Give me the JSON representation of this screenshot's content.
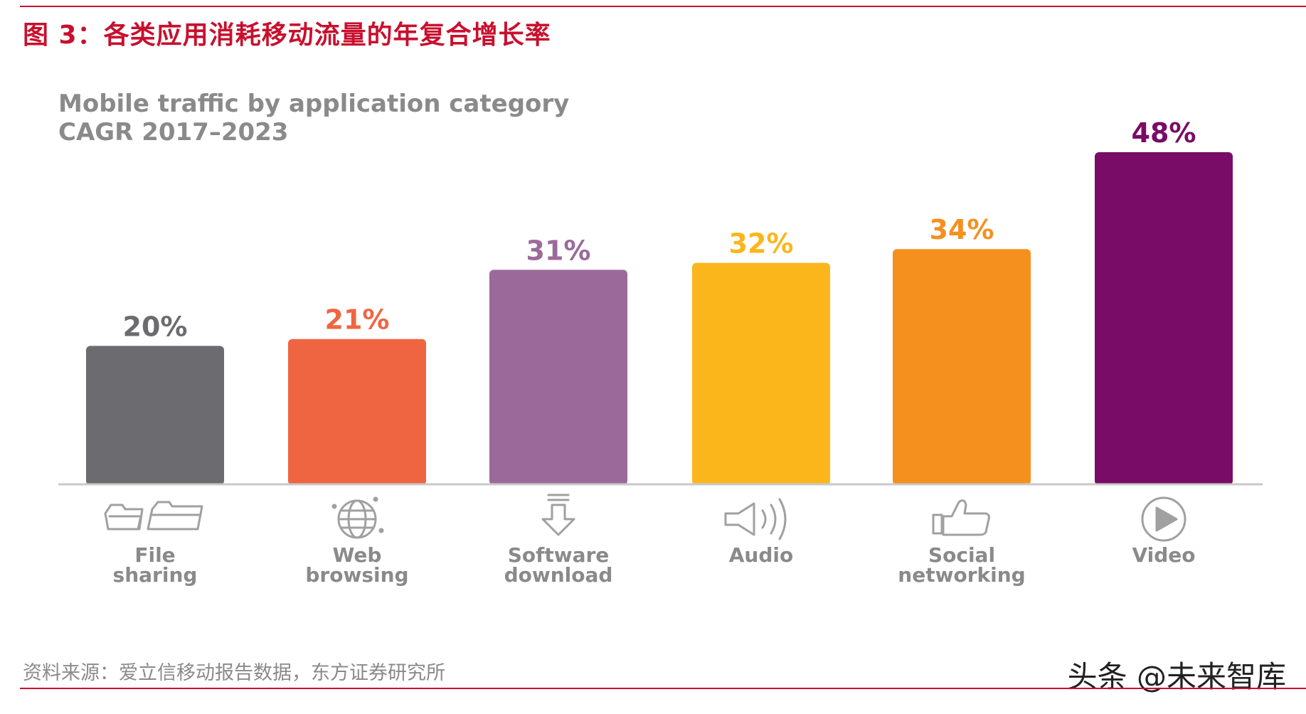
{
  "figure_title": "图 3：各类应用消耗移动流量的年复合增长率",
  "source_note": "资料来源：爱立信移动报告数据，东方证券研究所",
  "watermark": "头条 @未来智库",
  "chart_data": {
    "type": "bar",
    "title_line1": "Mobile traffic by application category",
    "title_line2": "CAGR 2017–2023",
    "xlabel": "",
    "ylabel": "",
    "ylim": [
      0,
      50
    ],
    "grid": false,
    "categories": [
      {
        "line1": "File",
        "line2": "sharing",
        "icon": "folders-icon"
      },
      {
        "line1": "Web",
        "line2": "browsing",
        "icon": "globe-icon"
      },
      {
        "line1": "Software",
        "line2": "download",
        "icon": "download-arrow-icon"
      },
      {
        "line1": "Audio",
        "line2": "",
        "icon": "speaker-icon"
      },
      {
        "line1": "Social",
        "line2": "networking",
        "icon": "thumbs-up-icon"
      },
      {
        "line1": "Video",
        "line2": "",
        "icon": "play-circle-icon"
      }
    ],
    "values": [
      20,
      21,
      31,
      32,
      34,
      48
    ],
    "data_labels": [
      "20%",
      "21%",
      "31%",
      "32%",
      "34%",
      "48%"
    ],
    "colors": [
      "#6b6b70",
      "#f06541",
      "#9b6a9a",
      "#fbb61b",
      "#f5901f",
      "#790c66"
    ],
    "label_colors": [
      "#6b6b70",
      "#f06541",
      "#9b6a9a",
      "#fbb61b",
      "#f5901f",
      "#790c66"
    ]
  }
}
